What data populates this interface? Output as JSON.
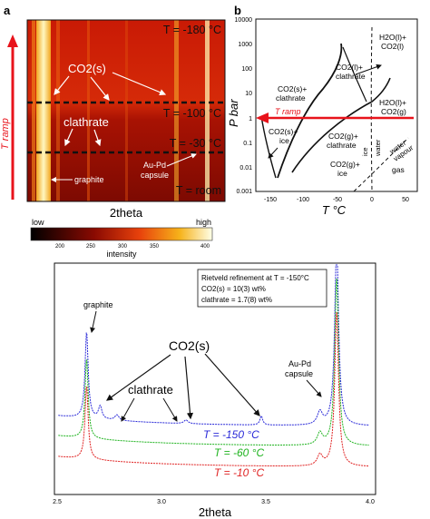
{
  "panel_a": {
    "label": "a",
    "ramp_label": "T ramp",
    "temps": {
      "t_minus180": "T = -180 °C",
      "t_minus100": "T = -100 °C",
      "t_minus30": "T = -30 °C",
      "t_room": "T = room"
    },
    "annotations": {
      "co2s": "CO2(s)",
      "clathrate": "clathrate",
      "graphite": "graphite",
      "aupd1": "Au-Pd",
      "aupd2": "capsule"
    },
    "xlabel": "2theta",
    "colorbar": {
      "low": "low",
      "high": "high",
      "label": "intensity",
      "ticks": [
        "200",
        "250",
        "300",
        "350",
        "400"
      ]
    }
  },
  "panel_b": {
    "label": "b",
    "ylabel": "P bar",
    "xlabel": "T °C",
    "yticks": [
      "10000",
      "1000",
      "100",
      "10",
      "1",
      "0.1",
      "0.01",
      "0.001"
    ],
    "xticks": [
      "-150",
      "-100",
      "-50",
      "0",
      "50"
    ],
    "ramp_label": "T ramp",
    "regions": {
      "co2l_clath_1": "CO2(l)+",
      "co2l_clath_2": "clathrate",
      "h2ol_co2l_1": "H2O(l)+",
      "h2ol_co2l_2": "CO2(l)",
      "co2s_clath_1": "CO2(s)+",
      "co2s_clath_2": "clathrate",
      "h2ol_co2g_1": "H2O(l)+",
      "h2ol_co2g_2": "CO2(g)",
      "co2s_ice_1": "CO2(s)+",
      "co2s_ice_2": "ice",
      "co2g_clath_1": "CO2(g)+",
      "co2g_clath_2": "clathrate",
      "co2g_ice_1": "CO2(g)+",
      "co2g_ice_2": "ice",
      "ice": "ice",
      "water": "water",
      "water_vapour_1": "water",
      "water_vapour_2": "vapour",
      "gas": "gas"
    }
  },
  "panel_c": {
    "label": "c",
    "box": {
      "line1": "Rietveld refinement  at T = -150°C",
      "line2": "CO2(s) = 10(3) wt%",
      "line3": "clathrate = 1.7(8) wt%"
    },
    "annotations": {
      "graphite": "graphite",
      "co2s": "CO2(s)",
      "clathrate": "clathrate",
      "aupd1": "Au-Pd",
      "aupd2": "capsule"
    },
    "series_labels": [
      "T = -150 °C",
      "T = -60 °C",
      "T = -10 °C"
    ],
    "xlabel": "2theta",
    "xticks": [
      "2.5",
      "3.0",
      "3.5",
      "4.0"
    ]
  },
  "chart_data": {
    "type": "line",
    "x_ticks": [
      2.5,
      3.0,
      3.5,
      4.0
    ],
    "xlim": [
      2.5,
      4.0
    ],
    "series": [
      {
        "name": "T = -150 °C",
        "color": "#2a2ad8"
      },
      {
        "name": "T = -60 °C",
        "color": "#1fb31f"
      },
      {
        "name": "T = -10 °C",
        "color": "#e02424"
      }
    ]
  }
}
